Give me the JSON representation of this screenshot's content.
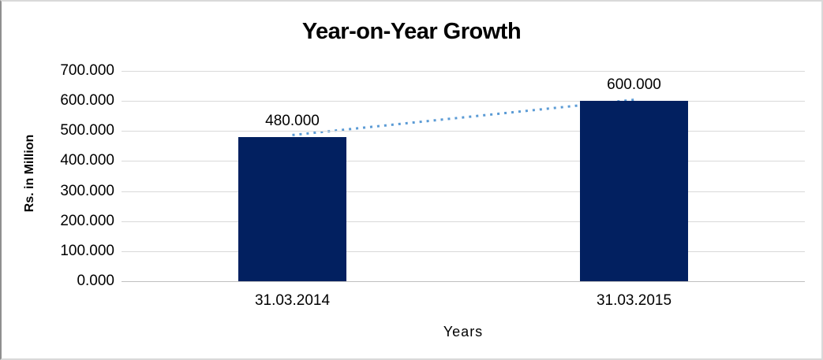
{
  "chart_data": {
    "type": "bar",
    "title": "Year-on-Year Growth",
    "categories": [
      "31.03.2014",
      "31.03.2015"
    ],
    "values": [
      480,
      600
    ],
    "value_labels": [
      "480.000",
      "600.000"
    ],
    "xlabel": "Years",
    "ylabel": "Rs. in Million",
    "ylim": [
      0,
      700
    ],
    "ytick_values": [
      0,
      100,
      200,
      300,
      400,
      500,
      600,
      700
    ],
    "ytick_labels": [
      "0.000",
      "100.000",
      "200.000",
      "300.000",
      "400.000",
      "500.000",
      "600.000",
      "700.000"
    ],
    "grid": true,
    "legend": false,
    "bar_color": "#022060",
    "trendline": {
      "type": "linear",
      "style": "dotted",
      "color": "#5b9bd5"
    },
    "colors": {
      "gridline": "#d9d9d9",
      "axis_line": "#bfbfbf",
      "text": "#000000",
      "background": "#ffffff"
    }
  }
}
